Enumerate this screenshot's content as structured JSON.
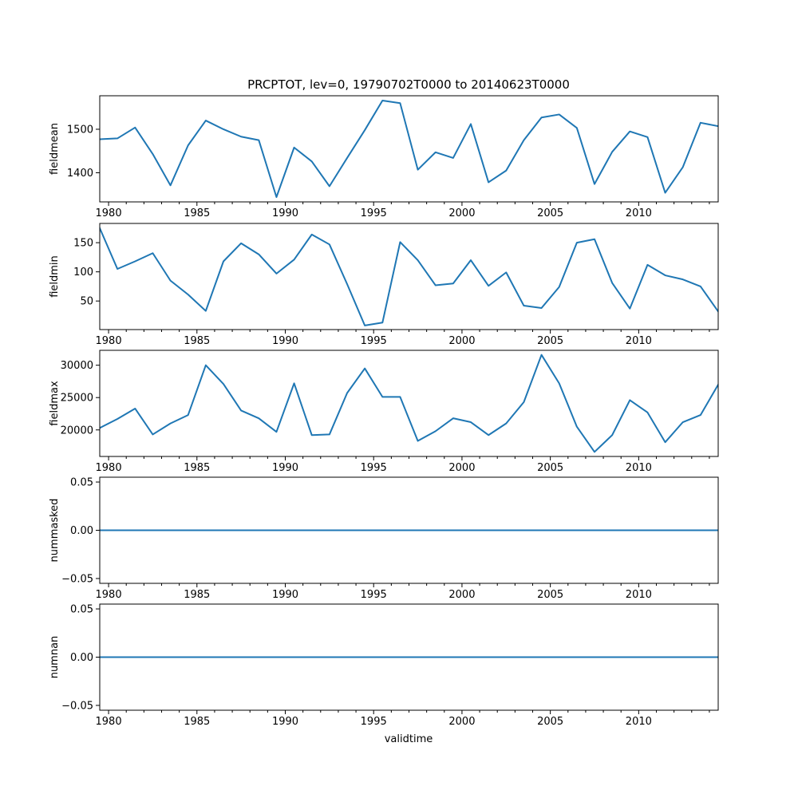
{
  "chart_data": {
    "type": "line",
    "title": "PRCPTOT, lev=0, 19790702T0000 to 20140623T0000",
    "xlabel": "validtime",
    "x_range": [
      1979.5,
      2014.5
    ],
    "x_major_ticks": [
      1980,
      1985,
      1990,
      1995,
      2000,
      2005,
      2010
    ],
    "x_minor_ticks": [
      1981,
      1982,
      1983,
      1984,
      1986,
      1987,
      1988,
      1989,
      1991,
      1992,
      1993,
      1994,
      1996,
      1997,
      1998,
      1999,
      2001,
      2002,
      2003,
      2004,
      2006,
      2007,
      2008,
      2009,
      2011,
      2012,
      2013,
      2014
    ],
    "line_color": "#1f77b4",
    "x": [
      1979.5,
      1980.5,
      1981.5,
      1982.5,
      1983.5,
      1984.5,
      1985.5,
      1986.5,
      1987.5,
      1988.5,
      1989.5,
      1990.5,
      1991.5,
      1992.5,
      1993.5,
      1994.5,
      1995.5,
      1996.5,
      1997.5,
      1998.5,
      1999.5,
      2000.5,
      2001.5,
      2002.5,
      2003.5,
      2004.5,
      2005.5,
      2006.5,
      2007.5,
      2008.5,
      2009.5,
      2010.5,
      2011.5,
      2012.5,
      2013.5,
      2014.5
    ],
    "panels": [
      {
        "ylabel": "fieldmean",
        "ylim": [
          1333,
          1577
        ],
        "yticks": [
          1400,
          1500
        ],
        "ytick_labels": [
          "1400",
          "1500"
        ],
        "values": [
          1477,
          1479,
          1504,
          1443,
          1371,
          1463,
          1520,
          1500,
          1483,
          1475,
          1344,
          1458,
          1426,
          1369,
          1434,
          1498,
          1566,
          1560,
          1407,
          1447,
          1434,
          1512,
          1378,
          1405,
          1475,
          1527,
          1534,
          1503,
          1374,
          1448,
          1495,
          1482,
          1354,
          1413,
          1515,
          1507
        ]
      },
      {
        "ylabel": "fieldmin",
        "ylim": [
          1,
          183
        ],
        "yticks": [
          50,
          100,
          150
        ],
        "ytick_labels": [
          "50",
          "100",
          "150"
        ],
        "values": [
          175,
          105,
          118,
          132,
          85,
          61,
          33,
          118,
          149,
          130,
          97,
          121,
          164,
          147,
          79,
          8,
          13,
          151,
          120,
          77,
          80,
          120,
          76,
          99,
          42,
          38,
          74,
          150,
          156,
          81,
          37,
          112,
          94,
          87,
          75,
          32
        ]
      },
      {
        "ylabel": "fieldmax",
        "ylim": [
          15900,
          32300
        ],
        "yticks": [
          20000,
          25000,
          30000
        ],
        "ytick_labels": [
          "20000",
          "25000",
          "30000"
        ],
        "values": [
          20300,
          21700,
          23300,
          19300,
          21000,
          22300,
          30000,
          27100,
          23000,
          21800,
          19700,
          27200,
          19200,
          19300,
          25700,
          29500,
          25100,
          25100,
          18300,
          19800,
          21800,
          21200,
          19200,
          21000,
          24300,
          31600,
          27200,
          20500,
          16600,
          19200,
          24600,
          22700,
          18100,
          21200,
          22300,
          27000
        ]
      },
      {
        "ylabel": "nummasked",
        "ylim": [
          -0.055,
          0.055
        ],
        "yticks": [
          -0.05,
          0,
          0.05
        ],
        "ytick_labels": [
          "−0.05",
          "0.00",
          "0.05"
        ],
        "values": [
          0,
          0,
          0,
          0,
          0,
          0,
          0,
          0,
          0,
          0,
          0,
          0,
          0,
          0,
          0,
          0,
          0,
          0,
          0,
          0,
          0,
          0,
          0,
          0,
          0,
          0,
          0,
          0,
          0,
          0,
          0,
          0,
          0,
          0,
          0,
          0
        ]
      },
      {
        "ylabel": "numnan",
        "ylim": [
          -0.055,
          0.055
        ],
        "yticks": [
          -0.05,
          0,
          0.05
        ],
        "ytick_labels": [
          "−0.05",
          "0.00",
          "0.05"
        ],
        "values": [
          0,
          0,
          0,
          0,
          0,
          0,
          0,
          0,
          0,
          0,
          0,
          0,
          0,
          0,
          0,
          0,
          0,
          0,
          0,
          0,
          0,
          0,
          0,
          0,
          0,
          0,
          0,
          0,
          0,
          0,
          0,
          0,
          0,
          0,
          0,
          0
        ]
      }
    ]
  }
}
